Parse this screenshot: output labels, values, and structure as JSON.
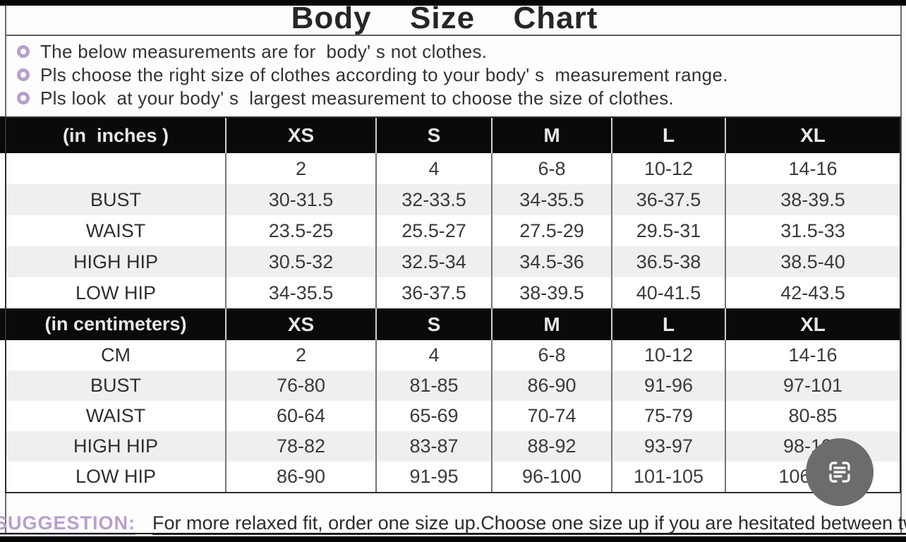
{
  "title": "Body  Size  Chart",
  "notes": [
    "The below measurements are for  body' s not clothes.",
    "Pls choose the right size of clothes according to your body' s  measurement range.",
    "Pls look  at your body' s  largest measurement to choose the size of clothes."
  ],
  "tables": [
    {
      "unit_label": "(in  inches )",
      "sizes": [
        "XS",
        "S",
        "M",
        "L",
        "XL"
      ],
      "rows": [
        {
          "label": "",
          "values": [
            "2",
            "4",
            "6-8",
            "10-12",
            "14-16"
          ]
        },
        {
          "label": "BUST",
          "values": [
            "30-31.5",
            "32-33.5",
            "34-35.5",
            "36-37.5",
            "38-39.5"
          ]
        },
        {
          "label": "WAIST",
          "values": [
            "23.5-25",
            "25.5-27",
            "27.5-29",
            "29.5-31",
            "31.5-33"
          ]
        },
        {
          "label": "HIGH HIP",
          "values": [
            "30.5-32",
            "32.5-34",
            "34.5-36",
            "36.5-38",
            "38.5-40"
          ]
        },
        {
          "label": "LOW HIP",
          "values": [
            "34-35.5",
            "36-37.5",
            "38-39.5",
            "40-41.5",
            "42-43.5"
          ]
        }
      ]
    },
    {
      "unit_label": "(in centimeters)",
      "sizes": [
        "XS",
        "S",
        "M",
        "L",
        "XL"
      ],
      "rows": [
        {
          "label": "CM",
          "values": [
            "2",
            "4",
            "6-8",
            "10-12",
            "14-16"
          ]
        },
        {
          "label": "BUST",
          "values": [
            "76-80",
            "81-85",
            "86-90",
            "91-96",
            "97-101"
          ]
        },
        {
          "label": "WAIST",
          "values": [
            "60-64",
            "65-69",
            "70-74",
            "75-79",
            "80-85"
          ]
        },
        {
          "label": "HIGH HIP",
          "values": [
            "78-82",
            "83-87",
            "88-92",
            "93-97",
            "98-102"
          ]
        },
        {
          "label": "LOW HIP",
          "values": [
            "86-90",
            "91-95",
            "96-100",
            "101-105",
            "106-110"
          ]
        }
      ]
    }
  ],
  "suggestion": {
    "label": "SUGGESTION:",
    "text": "For more relaxed fit, order one size up.Choose one size up if you are hesitated between two sizes."
  },
  "icons": {
    "extract_text": "extract-text-icon"
  },
  "colors": {
    "accent_purple": "#b7a0cc",
    "table_header_bg": "#0a0a0a",
    "stripe_gray": "#efefef",
    "scan_button_gray": "#6c6c6c",
    "text_dark": "#333333"
  }
}
